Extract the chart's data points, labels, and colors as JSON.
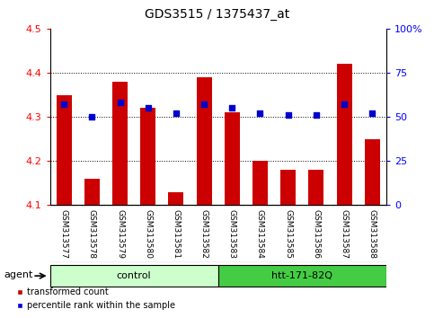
{
  "title": "GDS3515 / 1375437_at",
  "samples": [
    "GSM313577",
    "GSM313578",
    "GSM313579",
    "GSM313580",
    "GSM313581",
    "GSM313582",
    "GSM313583",
    "GSM313584",
    "GSM313585",
    "GSM313586",
    "GSM313587",
    "GSM313588"
  ],
  "transformed_count": [
    4.35,
    4.16,
    4.38,
    4.32,
    4.13,
    4.39,
    4.31,
    4.2,
    4.18,
    4.18,
    4.42,
    4.25
  ],
  "percentile_rank": [
    57,
    50,
    58,
    55,
    52,
    57,
    55,
    52,
    51,
    51,
    57,
    52
  ],
  "bar_color": "#cc0000",
  "dot_color": "#0000cc",
  "ylim_left": [
    4.1,
    4.5
  ],
  "ylim_right": [
    0,
    100
  ],
  "yticks_left": [
    4.1,
    4.2,
    4.3,
    4.4,
    4.5
  ],
  "yticks_right": [
    0,
    25,
    50,
    75,
    100
  ],
  "ytick_labels_right": [
    "0",
    "25",
    "50",
    "75",
    "100%"
  ],
  "groups": [
    {
      "label": "control",
      "start": 0,
      "end": 6,
      "color": "#ccffcc",
      "edge_color": "#000000"
    },
    {
      "label": "htt-171-82Q",
      "start": 6,
      "end": 12,
      "color": "#44cc44",
      "edge_color": "#000000"
    }
  ],
  "agent_label": "agent",
  "legend_items": [
    {
      "label": "transformed count",
      "color": "#cc0000",
      "marker": "s"
    },
    {
      "label": "percentile rank within the sample",
      "color": "#0000cc",
      "marker": "s"
    }
  ],
  "bar_bottom": 4.1,
  "tick_area_color": "#d0d0d0",
  "grid_lines": [
    4.2,
    4.3,
    4.4
  ],
  "bar_width": 0.55,
  "dot_size": 20
}
